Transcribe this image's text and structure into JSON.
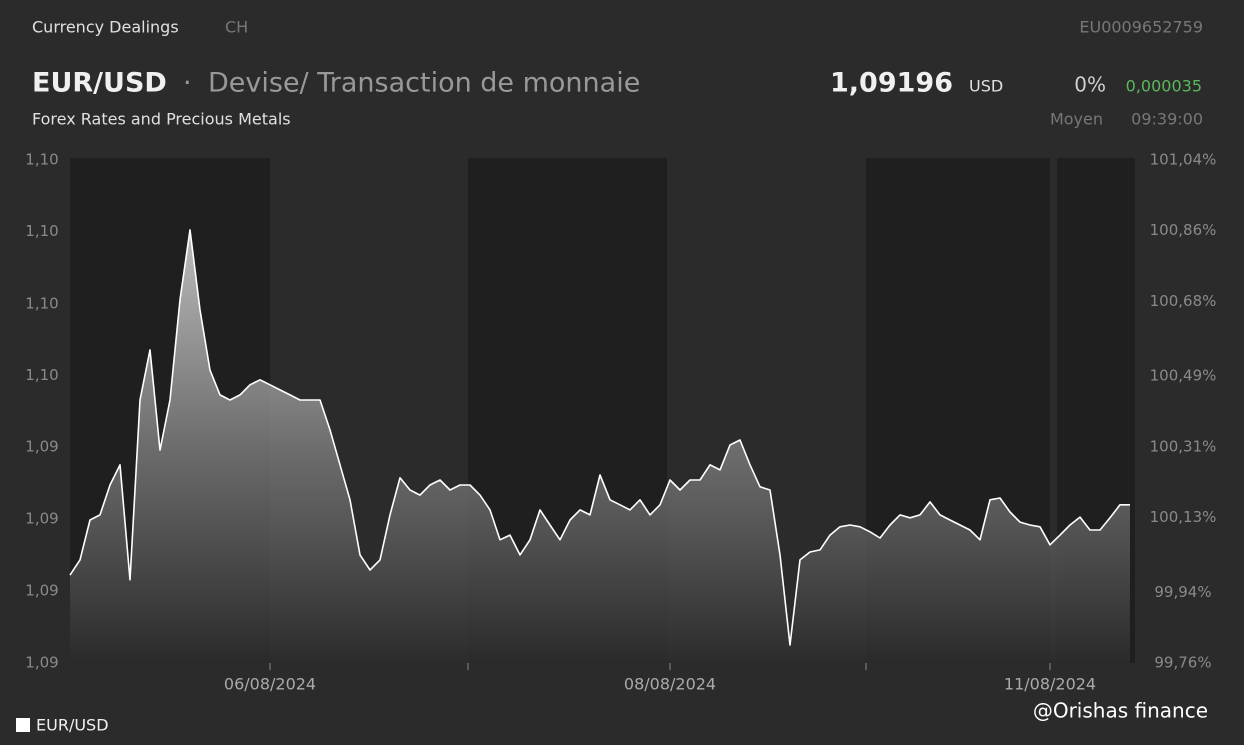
{
  "header": {
    "source": "Currency Dealings",
    "country": "CH",
    "isin": "EU0009652759",
    "symbol": "EUR/USD",
    "separator": "·",
    "description": "Devise/ Transaction de monnaie",
    "price": "1,09196",
    "currency": "USD",
    "change_pct": "0%",
    "change_abs": "0,000035",
    "category": "Forex Rates and Precious Metals",
    "price_type": "Moyen",
    "time": "09:39:00"
  },
  "watermark": "@Orishas finance",
  "chart_data": {
    "type": "area",
    "series": [
      {
        "name": "EUR/USD",
        "color": "#ffffff",
        "values": [
          1.09072,
          1.09114,
          1.09225,
          1.09239,
          1.09322,
          1.09378,
          1.09059,
          1.09558,
          1.09697,
          1.09419,
          1.09558,
          1.09836,
          1.1003,
          1.09808,
          1.09641,
          1.09572,
          1.09558,
          1.09572,
          1.096,
          1.09614,
          1.096,
          1.09586,
          1.09572,
          1.09558,
          1.09558,
          1.09558,
          1.09475,
          1.09378,
          1.09281,
          1.09128,
          1.09086,
          1.09114,
          1.09239,
          1.09342,
          1.09308,
          1.09294,
          1.09322,
          1.09336,
          1.09308,
          1.09322,
          1.09322,
          1.09294,
          1.09253,
          1.0917,
          1.09183,
          1.09128,
          1.0917,
          1.09253,
          1.09211,
          1.0917,
          1.09225,
          1.09253,
          1.09239,
          1.0935,
          1.09281,
          1.09267,
          1.09253,
          1.09281,
          1.09239,
          1.09267,
          1.09336,
          1.09308,
          1.09336,
          1.09336,
          1.09378,
          1.09364,
          1.09433,
          1.09447,
          1.09378,
          1.09317,
          1.09308,
          1.09128,
          1.08878,
          1.09114,
          1.09136,
          1.09142,
          1.09183,
          1.09206,
          1.09211,
          1.09206,
          1.09192,
          1.09175,
          1.09211,
          1.09239,
          1.09231,
          1.09239,
          1.09275,
          1.09239,
          1.09225,
          1.09211,
          1.09197,
          1.0917,
          1.09281,
          1.09286,
          1.09247,
          1.09219,
          1.09211,
          1.09206,
          1.09156,
          1.09183,
          1.09211,
          1.09233,
          1.09197,
          1.09197,
          1.09231,
          1.09267,
          1.09267
        ]
      }
    ],
    "xlim": [
      0,
      106.5
    ],
    "xticks": [
      {
        "value": 20,
        "label": "06/08/2024"
      },
      {
        "value": 60,
        "label": "08/08/2024"
      },
      {
        "value": 98,
        "label": "11/08/2024"
      }
    ],
    "ylim": [
      1.08828,
      1.10224
    ],
    "yticks": [
      {
        "value": 1.08828,
        "label": "1,09"
      },
      {
        "value": 1.09028,
        "label": "1,09"
      },
      {
        "value": 1.09227,
        "label": "1,09"
      },
      {
        "value": 1.09427,
        "label": "1,09"
      },
      {
        "value": 1.09626,
        "label": "1,10"
      },
      {
        "value": 1.09825,
        "label": "1,10"
      },
      {
        "value": 1.10025,
        "label": "1,10"
      },
      {
        "value": 1.10224,
        "label": "1,10"
      }
    ],
    "y2lim": [
      99.76,
      101.04
    ],
    "y2ticks": [
      {
        "value": 99.76,
        "label": "99,76%"
      },
      {
        "value": 99.94,
        "label": "99,94%"
      },
      {
        "value": 100.13,
        "label": "100,13%"
      },
      {
        "value": 100.31,
        "label": "100,31%"
      },
      {
        "value": 100.49,
        "label": "100,49%"
      },
      {
        "value": 100.68,
        "label": "100,68%"
      },
      {
        "value": 100.86,
        "label": "100,86%"
      },
      {
        "value": 101.04,
        "label": "101,04%"
      }
    ],
    "grid": false
  }
}
